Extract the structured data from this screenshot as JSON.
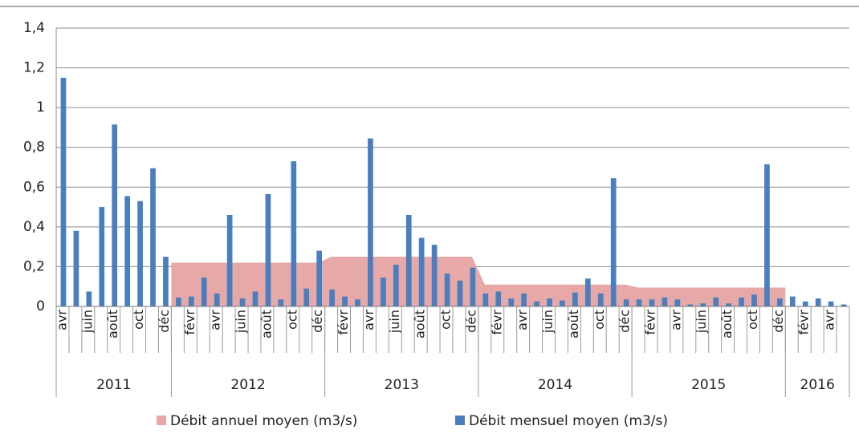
{
  "chart_data": {
    "type": "bar",
    "categories": [
      "avr",
      null,
      "juin",
      null,
      "août",
      null,
      "oct",
      null,
      "déc",
      null,
      "févr",
      null,
      "avr",
      null,
      "juin",
      null,
      "août",
      null,
      "oct",
      null,
      "déc",
      null,
      "févr",
      null,
      "avr",
      null,
      "juin",
      null,
      "août",
      null,
      "oct",
      null,
      "déc",
      null,
      "févr",
      null,
      "avr",
      null,
      "juin",
      null,
      "août",
      null,
      "oct",
      null,
      "déc",
      null,
      "févr",
      null,
      "avr",
      null,
      "juin",
      null,
      "août",
      null,
      "oct",
      null,
      "déc",
      null,
      "févr",
      null,
      "avr",
      null
    ],
    "groups": [
      "2011",
      "2012",
      "2013",
      "2014",
      "2015",
      "2016"
    ],
    "series": [
      {
        "name": "Débit annuel moyen (m3/s)",
        "type": "area",
        "color": "#e6a9a8",
        "values": [
          null,
          null,
          null,
          null,
          null,
          null,
          null,
          null,
          null,
          0.22,
          0.22,
          0.22,
          0.22,
          0.22,
          0.22,
          0.22,
          0.22,
          0.22,
          0.22,
          0.22,
          0.22,
          0.25,
          0.25,
          0.25,
          0.25,
          0.25,
          0.25,
          0.25,
          0.25,
          0.25,
          0.25,
          0.25,
          0.25,
          0.11,
          0.11,
          0.11,
          0.11,
          0.11,
          0.11,
          0.11,
          0.11,
          0.11,
          0.11,
          0.11,
          0.11,
          0.095,
          0.095,
          0.095,
          0.095,
          0.095,
          0.095,
          0.095,
          0.095,
          0.095,
          0.095,
          0.095,
          0.095,
          null,
          null,
          null,
          null,
          null
        ]
      },
      {
        "name": "Débit mensuel moyen (m3/s)",
        "type": "bar",
        "color": "#4a7ebf",
        "values": [
          1.15,
          0.38,
          0.075,
          0.5,
          0.915,
          0.555,
          0.53,
          0.695,
          0.25,
          0.045,
          0.05,
          0.145,
          0.065,
          0.46,
          0.04,
          0.075,
          0.565,
          0.035,
          0.73,
          0.09,
          0.28,
          0.085,
          0.05,
          0.035,
          0.845,
          0.145,
          0.21,
          0.46,
          0.345,
          0.31,
          0.165,
          0.13,
          0.195,
          0.065,
          0.075,
          0.04,
          0.065,
          0.025,
          0.04,
          0.03,
          0.07,
          0.14,
          0.065,
          0.645,
          0.035,
          0.035,
          0.035,
          0.045,
          0.035,
          0.01,
          0.015,
          0.045,
          0.015,
          0.045,
          0.06,
          0.715,
          0.04,
          0.05,
          0.025,
          0.04,
          0.025,
          0.01
        ]
      }
    ],
    "ylim": [
      0,
      1.4
    ],
    "yticks": [
      0,
      {
        "value": 0.2,
        "label": "0,2"
      },
      {
        "value": 0.4,
        "label": "0,4"
      },
      {
        "value": 0.6,
        "label": "0,6"
      },
      {
        "value": 0.8,
        "label": "0,8"
      },
      1,
      {
        "value": 1.2,
        "label": "1,2"
      },
      {
        "value": 1.4,
        "label": "1,4"
      }
    ],
    "grid": true,
    "legend": "bottom"
  }
}
